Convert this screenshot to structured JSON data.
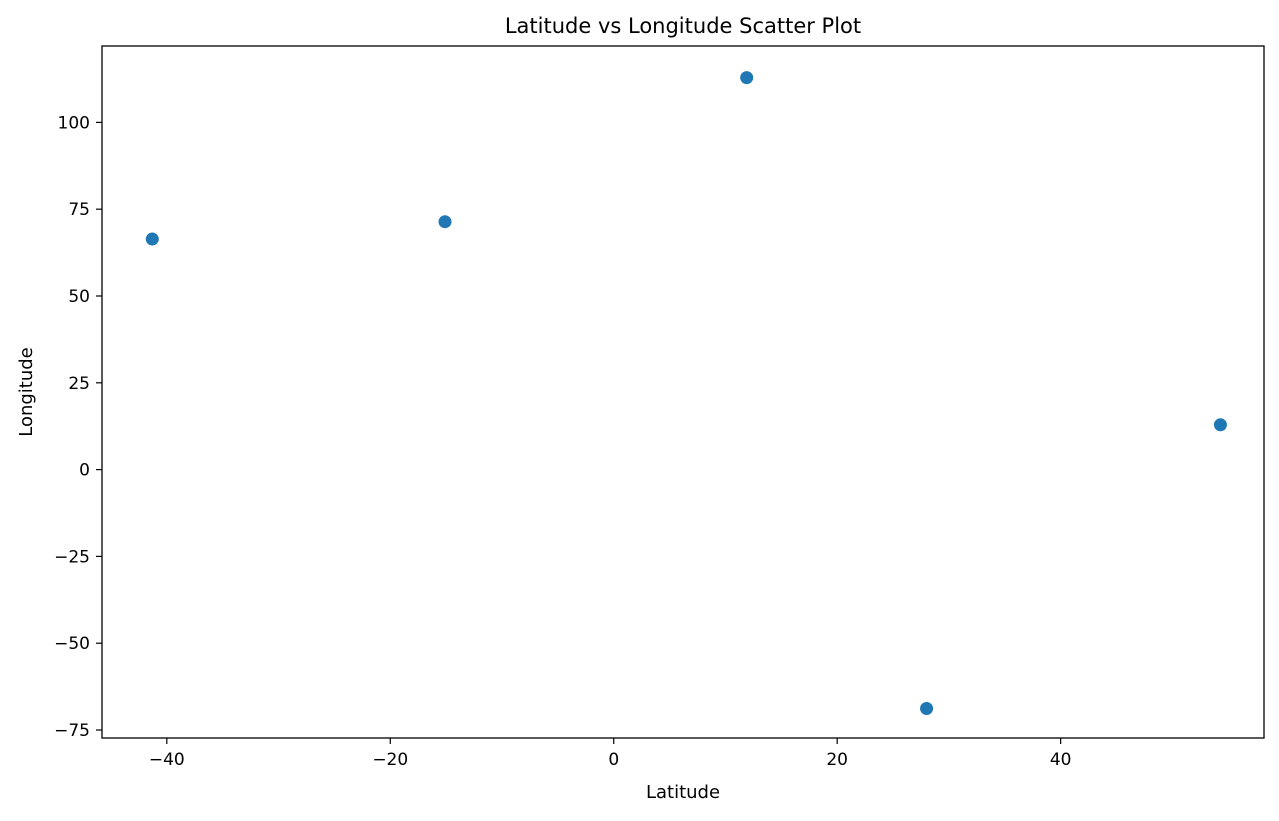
{
  "chart_data": {
    "type": "scatter",
    "title": "Latitude vs Longitude Scatter Plot",
    "xlabel": "Latitude",
    "ylabel": "Longitude",
    "xlim": [
      -45.8,
      58.2
    ],
    "ylim": [
      -77.3,
      122.0
    ],
    "x_ticks": [
      -40,
      -20,
      0,
      20,
      40
    ],
    "x_tick_labels": [
      "−40",
      "−20",
      "0",
      "20",
      "40"
    ],
    "y_ticks": [
      -75,
      -50,
      -25,
      0,
      25,
      50,
      75,
      100
    ],
    "y_tick_labels": [
      "−75",
      "−50",
      "−25",
      "0",
      "25",
      "50",
      "75",
      "100"
    ],
    "grid": false,
    "legend": "none",
    "marker_color": "#1f77b4",
    "points": [
      {
        "x": -41.3,
        "y": 66.4
      },
      {
        "x": -15.1,
        "y": 71.4
      },
      {
        "x": 11.9,
        "y": 112.9
      },
      {
        "x": 28.0,
        "y": -68.8
      },
      {
        "x": 54.3,
        "y": 12.9
      }
    ]
  }
}
